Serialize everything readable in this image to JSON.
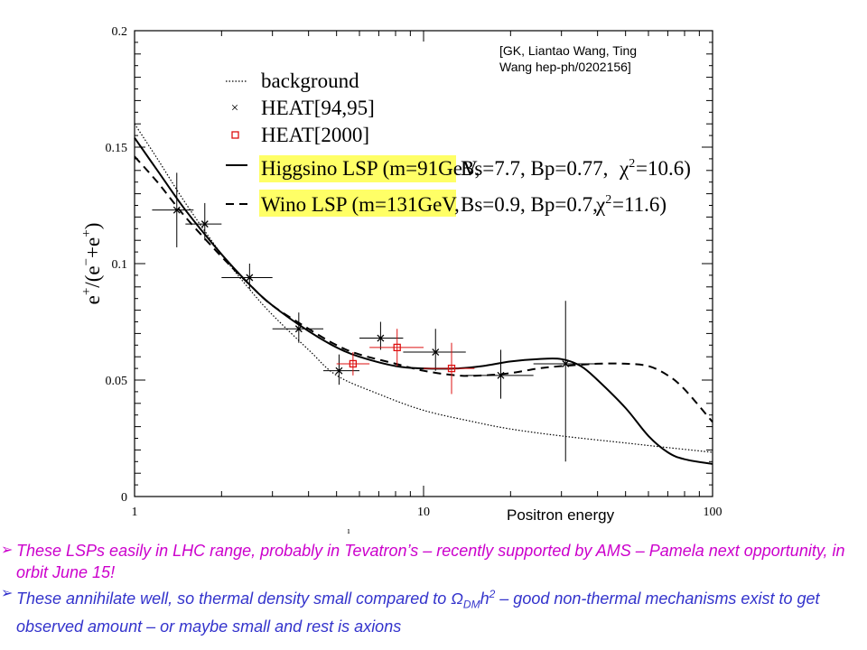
{
  "chart_data": {
    "type": "line",
    "xscale": "log",
    "xlim": [
      1,
      100
    ],
    "ylim": [
      0,
      0.2
    ],
    "x_ticks": [
      "1",
      "10",
      "100"
    ],
    "y_ticks": [
      "0",
      "0.05",
      "0.1",
      "0.15",
      "0.2"
    ],
    "xlabel": "Positron energy",
    "ylabel": "e+/(e−+e+)",
    "ylabel_parts": {
      "a": "e",
      "b": "+",
      "c": "/(e",
      "d": "−",
      "e": "+e",
      "f": "+",
      "g": ")"
    },
    "legend_position": "top-right",
    "legend": [
      {
        "key": "background",
        "label": "background",
        "style": "dotted"
      },
      {
        "key": "heat9495",
        "label": "HEAT[94,95]",
        "style": "cross"
      },
      {
        "key": "heat2000",
        "label": "HEAT[2000]",
        "style": "red-square"
      },
      {
        "key": "higgsino",
        "label": "Higgsino LSP (m=91GeV, Bs=7.7, Bp=0.77, χ²=10.6)",
        "style": "solid",
        "highlight": "#ffff66"
      },
      {
        "key": "wino",
        "label": "Wino LSP (m=131GeV, Bs=0.9, Bp=0.7, χ²=11.6)",
        "style": "dashed",
        "highlight": "#ffff66"
      }
    ],
    "legend_text": {
      "background": "background",
      "heat9495": "HEAT[94,95]",
      "heat2000": "HEAT[2000]",
      "higgsino_name": "Higgsino LSP (m=91GeV,",
      "higgsino_params": "Bs=7.7, Bp=0.77,",
      "higgsino_chi": "=10.6)",
      "wino_name": "Wino LSP (m=131GeV,",
      "wino_params": "Bs=0.9, Bp=0.7,",
      "wino_chi": "=11.6)",
      "chi": "χ",
      "sq": "2"
    },
    "series": [
      {
        "name": "background",
        "style": "dotted",
        "x": [
          1.0,
          1.2,
          1.5,
          2.0,
          2.5,
          3.0,
          4.0,
          5.0,
          7.0,
          10.0,
          15.0,
          20.0,
          30.0,
          50.0,
          70.0,
          100.0
        ],
        "y": [
          0.16,
          0.145,
          0.126,
          0.104,
          0.089,
          0.078,
          0.063,
          0.052,
          0.044,
          0.037,
          0.032,
          0.029,
          0.026,
          0.023,
          0.021,
          0.019
        ]
      },
      {
        "name": "Higgsino LSP",
        "style": "solid",
        "x": [
          1.0,
          1.2,
          1.5,
          2.0,
          2.5,
          3.0,
          4.0,
          5.0,
          6.0,
          8.0,
          10.0,
          13.0,
          16.0,
          20.0,
          25.0,
          30.0,
          35.0,
          40.0,
          50.0,
          60.0,
          70.0,
          80.0,
          100.0
        ],
        "y": [
          0.154,
          0.14,
          0.123,
          0.104,
          0.091,
          0.082,
          0.071,
          0.064,
          0.06,
          0.056,
          0.055,
          0.055,
          0.056,
          0.058,
          0.059,
          0.059,
          0.056,
          0.05,
          0.038,
          0.026,
          0.019,
          0.016,
          0.014
        ]
      },
      {
        "name": "Wino LSP",
        "style": "dashed",
        "x": [
          1.0,
          1.2,
          1.5,
          2.0,
          2.5,
          3.0,
          4.0,
          5.0,
          6.0,
          8.0,
          10.0,
          13.0,
          16.0,
          20.0,
          25.0,
          30.0,
          40.0,
          50.0,
          60.0,
          70.0,
          80.0,
          100.0
        ],
        "y": [
          0.146,
          0.135,
          0.12,
          0.103,
          0.091,
          0.082,
          0.072,
          0.065,
          0.061,
          0.057,
          0.054,
          0.052,
          0.052,
          0.053,
          0.055,
          0.056,
          0.057,
          0.057,
          0.056,
          0.052,
          0.046,
          0.032
        ]
      }
    ],
    "heat_94_95": [
      {
        "x": 1.4,
        "y": 0.123,
        "xlo": 1.15,
        "xhi": 1.6,
        "ylo": 0.107,
        "yhi": 0.139
      },
      {
        "x": 1.75,
        "y": 0.117,
        "xlo": 1.5,
        "xhi": 2.0,
        "ylo": 0.11,
        "yhi": 0.126
      },
      {
        "x": 2.5,
        "y": 0.094,
        "xlo": 2.0,
        "xhi": 3.0,
        "ylo": 0.089,
        "yhi": 0.1
      },
      {
        "x": 3.7,
        "y": 0.072,
        "xlo": 3.0,
        "xhi": 4.5,
        "ylo": 0.066,
        "yhi": 0.079
      },
      {
        "x": 5.1,
        "y": 0.054,
        "xlo": 4.5,
        "xhi": 6.0,
        "ylo": 0.048,
        "yhi": 0.061
      },
      {
        "x": 7.1,
        "y": 0.068,
        "xlo": 6.0,
        "xhi": 8.5,
        "ylo": 0.063,
        "yhi": 0.075
      },
      {
        "x": 11.0,
        "y": 0.062,
        "xlo": 8.5,
        "xhi": 14.0,
        "ylo": 0.054,
        "yhi": 0.072
      },
      {
        "x": 18.5,
        "y": 0.052,
        "xlo": 14.0,
        "xhi": 24.0,
        "ylo": 0.042,
        "yhi": 0.063
      },
      {
        "x": 31.0,
        "y": 0.057,
        "xlo": 24.0,
        "xhi": 40.0,
        "ylo": 0.015,
        "yhi": 0.084
      }
    ],
    "heat_2000": [
      {
        "x": 5.7,
        "y": 0.057,
        "xlo": 5.0,
        "xhi": 6.5,
        "ylo": 0.052,
        "yhi": 0.062
      },
      {
        "x": 8.1,
        "y": 0.064,
        "xlo": 6.5,
        "xhi": 10.0,
        "ylo": 0.056,
        "yhi": 0.072
      },
      {
        "x": 12.5,
        "y": 0.055,
        "xlo": 10.0,
        "xhi": 15.0,
        "ylo": 0.044,
        "yhi": 0.066
      }
    ]
  },
  "citation": {
    "line1": "[GK, Liantao Wang, Ting",
    "line2": "Wang hep-ph/0202156]"
  },
  "notes": {
    "bullet1": "These LSPs easily in LHC range, probably in Tevatron’s – recently supported by AMS – Pamela next opportunity, in orbit June 15!",
    "bullet2_pre": "These annihilate well, so thermal density small compared to Ω",
    "bullet2_sub": "DM",
    "bullet2_h": "h",
    "bullet2_sup": "2",
    "bullet2_post": " – good non-thermal mechanisms exist to get observed amount – or maybe small and rest is axions"
  },
  "colors": {
    "note1": "#cc00cc",
    "note2": "#3333cc",
    "heat2000": "#dd1111",
    "highlight": "#ffff66"
  }
}
